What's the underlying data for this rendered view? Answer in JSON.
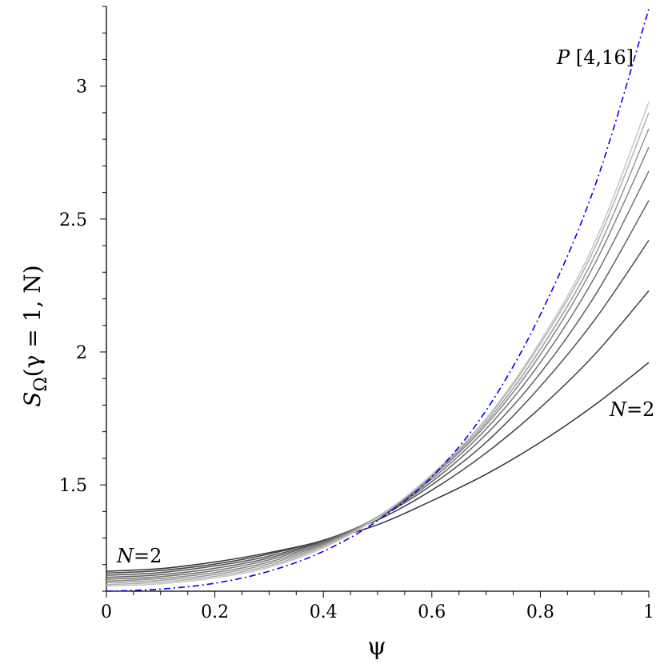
{
  "chart_data": {
    "type": "line",
    "title": "",
    "xlabel": "ψ",
    "ylabel": "S_Ω(γ = 1, N)",
    "ylabel_parts": {
      "base": "S",
      "subscript": "Ω",
      "args": "(γ = 1, N)"
    },
    "xlim": [
      0,
      1
    ],
    "ylim": [
      1.1,
      3.3
    ],
    "xticks": [
      0,
      0.2,
      0.4,
      0.6,
      0.8,
      1
    ],
    "xtick_labels": [
      "0",
      "0.2",
      "0.4",
      "0.6",
      "0.8",
      "1"
    ],
    "yticks": [
      1.5,
      2,
      2.5,
      3
    ],
    "ytick_labels": [
      "1.5",
      "2",
      "2.5",
      "3"
    ],
    "grid": false,
    "annotations": [
      {
        "text_italic": "N",
        "text_rest": "=2",
        "near": "upper-right of lowest curve end"
      },
      {
        "text_italic": "N",
        "text_rest": "=2",
        "near": "left start of top curve"
      },
      {
        "text_italic": "P",
        "text_rest": " [4,16]",
        "near": "top of dash-dot curve"
      }
    ],
    "series": [
      {
        "style": "solid",
        "color": "#333333",
        "x": [
          0,
          0.1,
          0.2,
          0.3,
          0.4,
          0.5,
          0.6,
          0.7,
          0.8,
          0.9,
          1.0
        ],
        "y": [
          1.175,
          1.185,
          1.21,
          1.245,
          1.29,
          1.35,
          1.44,
          1.54,
          1.66,
          1.8,
          1.96
        ]
      },
      {
        "style": "solid",
        "color": "#404040",
        "x": [
          0,
          0.1,
          0.2,
          0.3,
          0.4,
          0.5,
          0.6,
          0.7,
          0.8,
          0.9,
          1.0
        ],
        "y": [
          1.168,
          1.178,
          1.202,
          1.24,
          1.292,
          1.368,
          1.48,
          1.62,
          1.79,
          1.99,
          2.23
        ]
      },
      {
        "style": "solid",
        "color": "#505050",
        "x": [
          0,
          0.1,
          0.2,
          0.3,
          0.4,
          0.5,
          0.6,
          0.7,
          0.8,
          0.9,
          1.0
        ],
        "y": [
          1.16,
          1.17,
          1.195,
          1.232,
          1.29,
          1.375,
          1.5,
          1.66,
          1.87,
          2.12,
          2.42
        ]
      },
      {
        "style": "solid",
        "color": "#606060",
        "x": [
          0,
          0.1,
          0.2,
          0.3,
          0.4,
          0.5,
          0.6,
          0.7,
          0.8,
          0.9,
          1.0
        ],
        "y": [
          1.152,
          1.162,
          1.186,
          1.225,
          1.287,
          1.378,
          1.512,
          1.69,
          1.92,
          2.21,
          2.57
        ]
      },
      {
        "style": "solid",
        "color": "#727272",
        "x": [
          0,
          0.1,
          0.2,
          0.3,
          0.4,
          0.5,
          0.6,
          0.7,
          0.8,
          0.9,
          1.0
        ],
        "y": [
          1.145,
          1.155,
          1.178,
          1.218,
          1.282,
          1.38,
          1.522,
          1.71,
          1.96,
          2.28,
          2.68
        ]
      },
      {
        "style": "solid",
        "color": "#858585",
        "x": [
          0,
          0.1,
          0.2,
          0.3,
          0.4,
          0.5,
          0.6,
          0.7,
          0.8,
          0.9,
          1.0
        ],
        "y": [
          1.138,
          1.148,
          1.17,
          1.21,
          1.278,
          1.38,
          1.53,
          1.725,
          1.99,
          2.33,
          2.77
        ]
      },
      {
        "style": "solid",
        "color": "#999999",
        "x": [
          0,
          0.1,
          0.2,
          0.3,
          0.4,
          0.5,
          0.6,
          0.7,
          0.8,
          0.9,
          1.0
        ],
        "y": [
          1.132,
          1.141,
          1.163,
          1.203,
          1.273,
          1.38,
          1.535,
          1.735,
          2.01,
          2.36,
          2.84
        ]
      },
      {
        "style": "solid",
        "color": "#b0b0b0",
        "x": [
          0,
          0.1,
          0.2,
          0.3,
          0.4,
          0.5,
          0.6,
          0.7,
          0.8,
          0.9,
          1.0
        ],
        "y": [
          1.125,
          1.134,
          1.156,
          1.196,
          1.268,
          1.378,
          1.538,
          1.745,
          2.03,
          2.39,
          2.9
        ]
      },
      {
        "style": "solid",
        "color": "#c6c6c6",
        "x": [
          0,
          0.1,
          0.2,
          0.3,
          0.4,
          0.5,
          0.6,
          0.7,
          0.8,
          0.9,
          1.0
        ],
        "y": [
          1.12,
          1.128,
          1.15,
          1.19,
          1.263,
          1.376,
          1.54,
          1.75,
          2.04,
          2.41,
          2.94
        ]
      },
      {
        "style": "dashdot",
        "color": "#0000ee",
        "x": [
          0,
          0.1,
          0.2,
          0.3,
          0.4,
          0.5,
          0.6,
          0.7,
          0.8,
          0.9,
          1.0
        ],
        "y": [
          1.1,
          1.108,
          1.13,
          1.175,
          1.25,
          1.365,
          1.53,
          1.78,
          2.14,
          2.62,
          3.29
        ]
      }
    ]
  }
}
